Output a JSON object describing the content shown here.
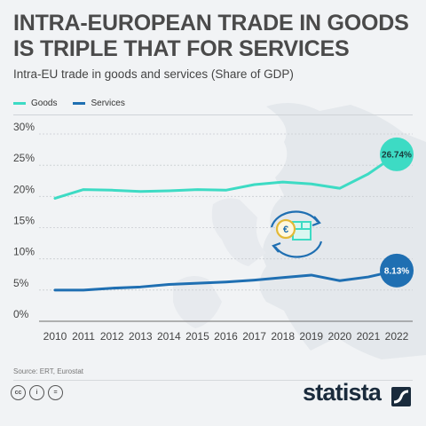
{
  "header": {
    "title_line1": "INTRA-EUROPEAN TRADE IN GOODS",
    "title_line2": "IS TRIPLE THAT FOR SERVICES",
    "subtitle": "Intra-EU trade in goods and services (Share of GDP)"
  },
  "colors": {
    "goods": "#3ddbc4",
    "services": "#1f6fb2"
  },
  "chart_data": {
    "type": "line",
    "x": [
      "2010",
      "2011",
      "2012",
      "2013",
      "2014",
      "2015",
      "2016",
      "2017",
      "2018",
      "2019",
      "2020",
      "2021",
      "2022"
    ],
    "series": [
      {
        "name": "Goods",
        "color": "#3ddbc4",
        "values": [
          19.7,
          21.1,
          21.0,
          20.8,
          20.9,
          21.1,
          21.0,
          21.9,
          22.3,
          22.0,
          21.3,
          23.6,
          26.74
        ]
      },
      {
        "name": "Services",
        "color": "#1f6fb2",
        "values": [
          5.0,
          5.0,
          5.3,
          5.5,
          5.9,
          6.1,
          6.3,
          6.6,
          7.0,
          7.4,
          6.5,
          7.1,
          8.13
        ]
      }
    ],
    "end_labels": [
      "26.74%",
      "8.13%"
    ],
    "yticks": [
      "0%",
      "5%",
      "10%",
      "15%",
      "20%",
      "25%",
      "30%"
    ],
    "ylim": [
      0,
      30
    ],
    "grid": true,
    "legend": "top-left"
  },
  "footer": {
    "source": "Source: ERT, Eurostat",
    "license_icons": [
      "cc",
      "i",
      "="
    ],
    "brand": "statista"
  }
}
